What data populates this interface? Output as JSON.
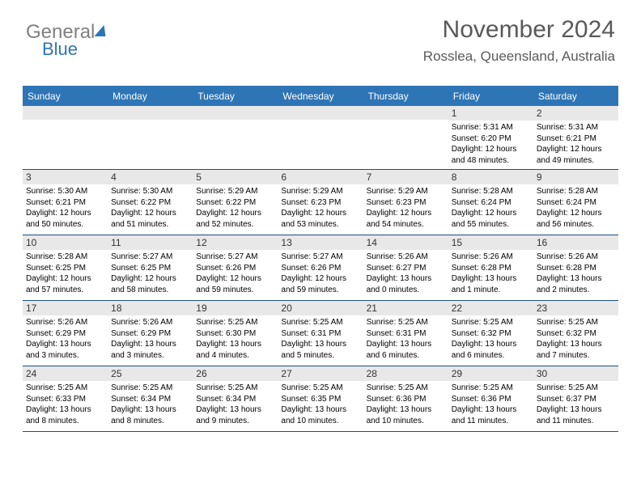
{
  "brand": {
    "part1": "General",
    "part2": "Blue"
  },
  "title": "November 2024",
  "location": "Rosslea, Queensland, Australia",
  "colors": {
    "header_bar": "#2e75b6",
    "daynum_bg": "#e8e8e8",
    "text_dark": "#000000",
    "text_gray": "#595959",
    "divider": "#1f4e79"
  },
  "weekdays": [
    "Sunday",
    "Monday",
    "Tuesday",
    "Wednesday",
    "Thursday",
    "Friday",
    "Saturday"
  ],
  "weeks": [
    [
      {
        "n": "",
        "sr": "",
        "ss": "",
        "dl": ""
      },
      {
        "n": "",
        "sr": "",
        "ss": "",
        "dl": ""
      },
      {
        "n": "",
        "sr": "",
        "ss": "",
        "dl": ""
      },
      {
        "n": "",
        "sr": "",
        "ss": "",
        "dl": ""
      },
      {
        "n": "",
        "sr": "",
        "ss": "",
        "dl": ""
      },
      {
        "n": "1",
        "sr": "Sunrise: 5:31 AM",
        "ss": "Sunset: 6:20 PM",
        "dl": "Daylight: 12 hours and 48 minutes."
      },
      {
        "n": "2",
        "sr": "Sunrise: 5:31 AM",
        "ss": "Sunset: 6:21 PM",
        "dl": "Daylight: 12 hours and 49 minutes."
      }
    ],
    [
      {
        "n": "3",
        "sr": "Sunrise: 5:30 AM",
        "ss": "Sunset: 6:21 PM",
        "dl": "Daylight: 12 hours and 50 minutes."
      },
      {
        "n": "4",
        "sr": "Sunrise: 5:30 AM",
        "ss": "Sunset: 6:22 PM",
        "dl": "Daylight: 12 hours and 51 minutes."
      },
      {
        "n": "5",
        "sr": "Sunrise: 5:29 AM",
        "ss": "Sunset: 6:22 PM",
        "dl": "Daylight: 12 hours and 52 minutes."
      },
      {
        "n": "6",
        "sr": "Sunrise: 5:29 AM",
        "ss": "Sunset: 6:23 PM",
        "dl": "Daylight: 12 hours and 53 minutes."
      },
      {
        "n": "7",
        "sr": "Sunrise: 5:29 AM",
        "ss": "Sunset: 6:23 PM",
        "dl": "Daylight: 12 hours and 54 minutes."
      },
      {
        "n": "8",
        "sr": "Sunrise: 5:28 AM",
        "ss": "Sunset: 6:24 PM",
        "dl": "Daylight: 12 hours and 55 minutes."
      },
      {
        "n": "9",
        "sr": "Sunrise: 5:28 AM",
        "ss": "Sunset: 6:24 PM",
        "dl": "Daylight: 12 hours and 56 minutes."
      }
    ],
    [
      {
        "n": "10",
        "sr": "Sunrise: 5:28 AM",
        "ss": "Sunset: 6:25 PM",
        "dl": "Daylight: 12 hours and 57 minutes."
      },
      {
        "n": "11",
        "sr": "Sunrise: 5:27 AM",
        "ss": "Sunset: 6:25 PM",
        "dl": "Daylight: 12 hours and 58 minutes."
      },
      {
        "n": "12",
        "sr": "Sunrise: 5:27 AM",
        "ss": "Sunset: 6:26 PM",
        "dl": "Daylight: 12 hours and 59 minutes."
      },
      {
        "n": "13",
        "sr": "Sunrise: 5:27 AM",
        "ss": "Sunset: 6:26 PM",
        "dl": "Daylight: 12 hours and 59 minutes."
      },
      {
        "n": "14",
        "sr": "Sunrise: 5:26 AM",
        "ss": "Sunset: 6:27 PM",
        "dl": "Daylight: 13 hours and 0 minutes."
      },
      {
        "n": "15",
        "sr": "Sunrise: 5:26 AM",
        "ss": "Sunset: 6:28 PM",
        "dl": "Daylight: 13 hours and 1 minute."
      },
      {
        "n": "16",
        "sr": "Sunrise: 5:26 AM",
        "ss": "Sunset: 6:28 PM",
        "dl": "Daylight: 13 hours and 2 minutes."
      }
    ],
    [
      {
        "n": "17",
        "sr": "Sunrise: 5:26 AM",
        "ss": "Sunset: 6:29 PM",
        "dl": "Daylight: 13 hours and 3 minutes."
      },
      {
        "n": "18",
        "sr": "Sunrise: 5:26 AM",
        "ss": "Sunset: 6:29 PM",
        "dl": "Daylight: 13 hours and 3 minutes."
      },
      {
        "n": "19",
        "sr": "Sunrise: 5:25 AM",
        "ss": "Sunset: 6:30 PM",
        "dl": "Daylight: 13 hours and 4 minutes."
      },
      {
        "n": "20",
        "sr": "Sunrise: 5:25 AM",
        "ss": "Sunset: 6:31 PM",
        "dl": "Daylight: 13 hours and 5 minutes."
      },
      {
        "n": "21",
        "sr": "Sunrise: 5:25 AM",
        "ss": "Sunset: 6:31 PM",
        "dl": "Daylight: 13 hours and 6 minutes."
      },
      {
        "n": "22",
        "sr": "Sunrise: 5:25 AM",
        "ss": "Sunset: 6:32 PM",
        "dl": "Daylight: 13 hours and 6 minutes."
      },
      {
        "n": "23",
        "sr": "Sunrise: 5:25 AM",
        "ss": "Sunset: 6:32 PM",
        "dl": "Daylight: 13 hours and 7 minutes."
      }
    ],
    [
      {
        "n": "24",
        "sr": "Sunrise: 5:25 AM",
        "ss": "Sunset: 6:33 PM",
        "dl": "Daylight: 13 hours and 8 minutes."
      },
      {
        "n": "25",
        "sr": "Sunrise: 5:25 AM",
        "ss": "Sunset: 6:34 PM",
        "dl": "Daylight: 13 hours and 8 minutes."
      },
      {
        "n": "26",
        "sr": "Sunrise: 5:25 AM",
        "ss": "Sunset: 6:34 PM",
        "dl": "Daylight: 13 hours and 9 minutes."
      },
      {
        "n": "27",
        "sr": "Sunrise: 5:25 AM",
        "ss": "Sunset: 6:35 PM",
        "dl": "Daylight: 13 hours and 10 minutes."
      },
      {
        "n": "28",
        "sr": "Sunrise: 5:25 AM",
        "ss": "Sunset: 6:36 PM",
        "dl": "Daylight: 13 hours and 10 minutes."
      },
      {
        "n": "29",
        "sr": "Sunrise: 5:25 AM",
        "ss": "Sunset: 6:36 PM",
        "dl": "Daylight: 13 hours and 11 minutes."
      },
      {
        "n": "30",
        "sr": "Sunrise: 5:25 AM",
        "ss": "Sunset: 6:37 PM",
        "dl": "Daylight: 13 hours and 11 minutes."
      }
    ]
  ]
}
